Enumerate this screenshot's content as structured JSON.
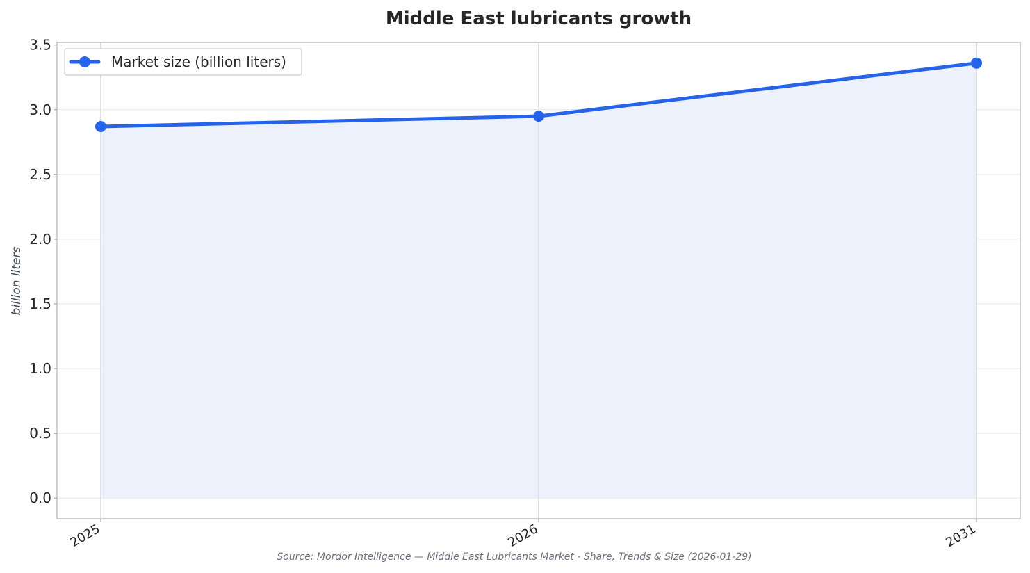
{
  "chart_data": {
    "type": "line",
    "title": "Middle East lubricants growth",
    "xlabel": "",
    "ylabel": "billion liters",
    "categories": [
      "2025",
      "2026",
      "2031"
    ],
    "series": [
      {
        "name": "Market size (billion liters)",
        "values": [
          2.87,
          2.95,
          3.36
        ]
      }
    ],
    "ylim": [
      -0.16,
      3.52
    ],
    "yticks": [
      "0.0",
      "0.5",
      "1.0",
      "1.5",
      "2.0",
      "2.5",
      "3.0",
      "3.5"
    ],
    "grid": true,
    "area_fill": true,
    "legend": "top-left",
    "source": "Source: Mordor Intelligence — Middle East Lubricants Market - Share, Trends & Size (2026-01-29)",
    "colors": {
      "line": "#2563eb",
      "fill": "#ecf1fb",
      "grid": "#e6e6e6",
      "vgrid": "#c8ccd4",
      "frame": "#c0c0c0"
    }
  }
}
